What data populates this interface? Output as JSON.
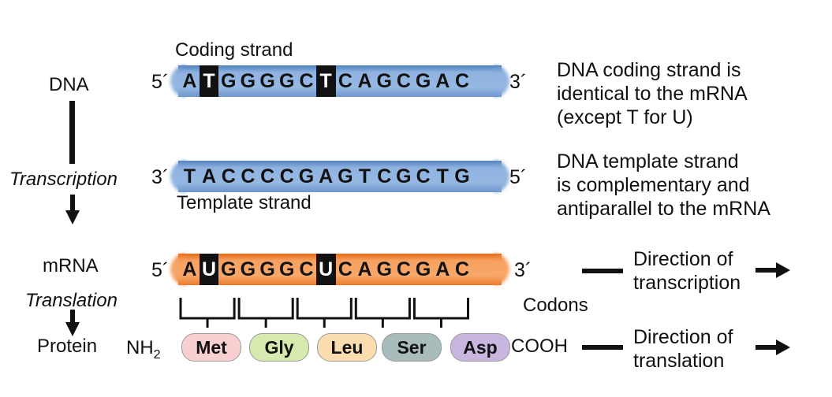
{
  "left": {
    "dna": "DNA",
    "transcription": "Transcription",
    "mrna": "mRNA",
    "translation": "Translation",
    "protein": "Protein"
  },
  "coding": {
    "title": "Coding strand",
    "end5": "5´",
    "end3": "3´",
    "bases": [
      "A",
      "T",
      "G",
      "G",
      "G",
      "G",
      "C",
      "T",
      "C",
      "A",
      "G",
      "C",
      "G",
      "A",
      "C"
    ],
    "highlight": [
      1,
      7
    ]
  },
  "template": {
    "title": "Template strand",
    "end3": "3´",
    "end5": "5´",
    "bases": [
      "T",
      "A",
      "C",
      "C",
      "C",
      "C",
      "G",
      "A",
      "G",
      "T",
      "C",
      "G",
      "C",
      "T",
      "G"
    ]
  },
  "mrna": {
    "end5": "5´",
    "end3": "3´",
    "bases": [
      "A",
      "U",
      "G",
      "G",
      "G",
      "G",
      "C",
      "U",
      "C",
      "A",
      "G",
      "C",
      "G",
      "A",
      "C"
    ],
    "highlight": [
      1,
      7
    ]
  },
  "codons_label": "Codons",
  "protein": {
    "nh2_main": "NH",
    "nh2_sub": "2",
    "cooh": "COOH",
    "amino_acids": [
      {
        "name": "Met",
        "color": "#f8d0d2"
      },
      {
        "name": "Gly",
        "color": "#d6eab0"
      },
      {
        "name": "Leu",
        "color": "#fbdcae"
      },
      {
        "name": "Ser",
        "color": "#a8bcbc"
      },
      {
        "name": "Asp",
        "color": "#c9b6df"
      }
    ]
  },
  "notes": {
    "coding": [
      "DNA coding strand is",
      "identical to the mRNA",
      "(except T for U)"
    ],
    "template": [
      "DNA template strand",
      "is complementary and",
      "antiparallel to the mRNA"
    ],
    "transcription_dir": [
      "Direction of",
      "transcription"
    ],
    "translation_dir": [
      "Direction of",
      "translation"
    ]
  }
}
